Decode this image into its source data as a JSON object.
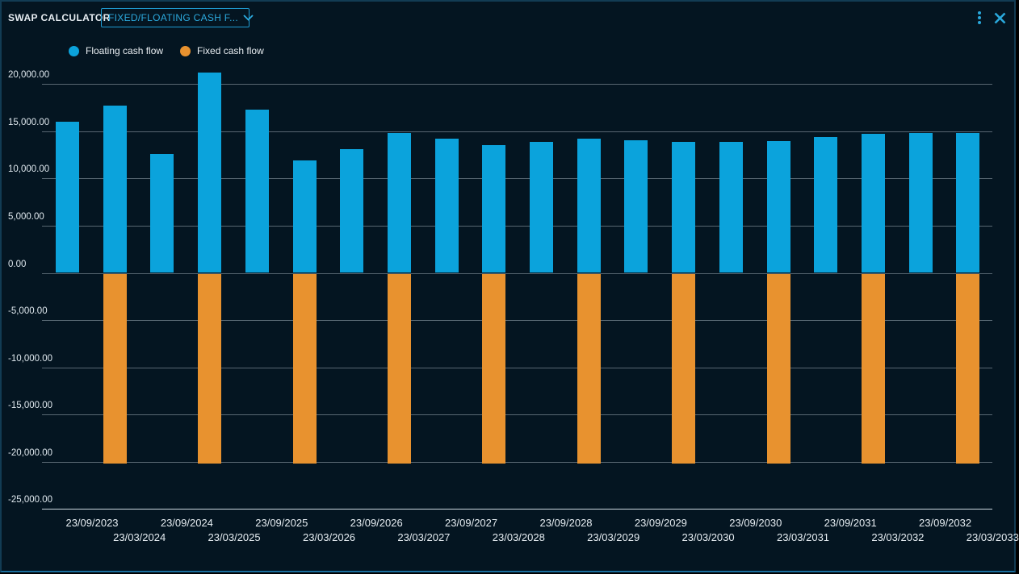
{
  "header": {
    "title": "SWAP CALCULATOR",
    "dropdown": {
      "value": "FIXED/FLOATING CASH F...",
      "icon": "chevron-down"
    },
    "menu_icon": "kebab-menu",
    "close_icon": "close-x"
  },
  "legend": {
    "items": [
      {
        "label": "Floating cash flow",
        "color": "#0ba3dc",
        "swatch": "circle"
      },
      {
        "label": "Fixed cash flow",
        "color": "#e8922f",
        "swatch": "circle"
      }
    ]
  },
  "colors": {
    "background": "#041521",
    "accent_cyan": "#29a8dc",
    "floating_blue": "#0ba3dc",
    "fixed_orange": "#e8922f",
    "gridline": "rgba(205,218,226,0.42)",
    "axis_line": "#cdd9e1",
    "label_text": "#e6edf2"
  },
  "chart_data": {
    "type": "bar",
    "title": "",
    "xlabel": "",
    "ylabel": "",
    "grid": true,
    "legend_position": "top-left",
    "ylim": [
      -25000,
      21500
    ],
    "y_tick_values": [
      20000,
      15000,
      10000,
      5000,
      0,
      -5000,
      -10000,
      -15000,
      -20000,
      -25000
    ],
    "y_tick_labels": [
      "20,000.00",
      "15,000.00",
      "10,000.00",
      "5,000.00",
      "0.00",
      "-5,000.00",
      "-10,000.00",
      "-15,000.00",
      "-20,000.00",
      "-25,000.00"
    ],
    "categories": [
      "23/09/2023",
      "23/03/2024",
      "23/09/2024",
      "23/03/2025",
      "23/09/2025",
      "23/03/2026",
      "23/09/2026",
      "23/03/2027",
      "23/09/2027",
      "23/03/2028",
      "23/09/2028",
      "23/03/2029",
      "23/09/2029",
      "23/03/2030",
      "23/09/2030",
      "23/03/2031",
      "23/09/2031",
      "23/03/2032",
      "23/09/2032",
      "23/03/2033"
    ],
    "series": [
      {
        "name": "Floating cash flow",
        "color": "#0ba3dc",
        "values": [
          16050,
          17700,
          12600,
          21200,
          17300,
          11900,
          13100,
          14800,
          14200,
          13500,
          13900,
          14250,
          14050,
          13850,
          13900,
          14000,
          14400,
          14700,
          14800,
          14800
        ]
      },
      {
        "name": "Fixed cash flow",
        "color": "#e8922f",
        "values": [
          null,
          -20100,
          null,
          -20100,
          null,
          -20100,
          null,
          -20100,
          null,
          -20100,
          null,
          -20100,
          null,
          -20100,
          null,
          -20100,
          null,
          -20100,
          null,
          -20100
        ]
      }
    ]
  }
}
